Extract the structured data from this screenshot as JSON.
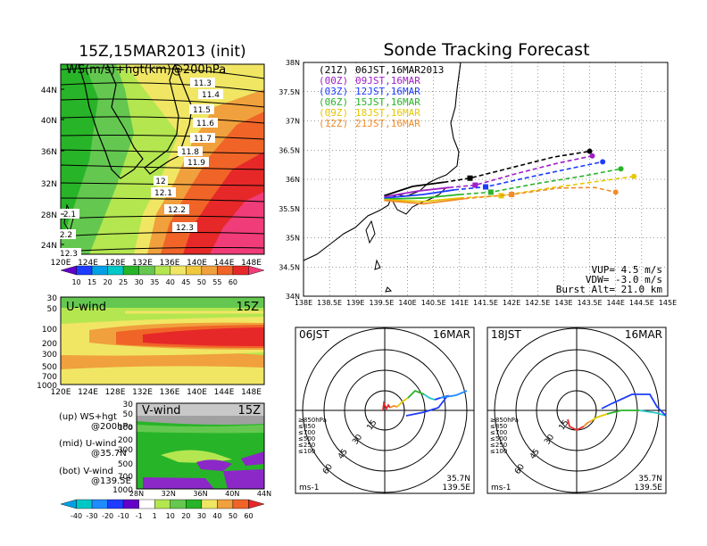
{
  "left_panel": {
    "title": "15Z,15MAR2013 (init)",
    "map_label": "WS(m/s)+hgt(km)@200hPa",
    "lat_ticks": [
      "44N",
      "40N",
      "36N",
      "32N",
      "28N",
      "24N"
    ],
    "lon_ticks": [
      "120E",
      "124E",
      "128E",
      "132E",
      "136E",
      "140E",
      "144E",
      "148E"
    ],
    "contour_labels": [
      "11.3",
      "11.4",
      "11.5",
      "11.6",
      "11.7",
      "11.8",
      "11.9",
      "12",
      "12.1",
      "12.2",
      "12.3",
      "12.3",
      "2.1",
      "2.2"
    ],
    "ws_colorbar": [
      "10",
      "15",
      "20",
      "25",
      "30",
      "35",
      "40",
      "45",
      "50",
      "55",
      "60"
    ],
    "u_panel": {
      "label": "U-wind",
      "time": "15Z",
      "p_ticks": [
        "30",
        "50",
        "100",
        "200",
        "300",
        "500",
        "700",
        "1000"
      ],
      "lon_ticks": [
        "120E",
        "124E",
        "128E",
        "132E",
        "136E",
        "140E",
        "144E",
        "148E"
      ]
    },
    "v_panel": {
      "label": "V-wind",
      "time": "15Z",
      "p_ticks": [
        "30",
        "50",
        "100",
        "200",
        "300",
        "500",
        "700",
        "1000"
      ],
      "lat_ticks": [
        "28N",
        "32N",
        "36N",
        "40N",
        "44N"
      ]
    },
    "legend": {
      "up": "(up) WS+hgt",
      "up2": "@200hPa",
      "mid": "(mid) U-wind",
      "mid2": "@35.7N",
      "bot": "(bot) V-wind",
      "bot2": "@139.5E"
    },
    "v_colorbar": [
      "-40",
      "-30",
      "-20",
      "-10",
      "-1",
      "1",
      "10",
      "20",
      "30",
      "40",
      "50",
      "60"
    ]
  },
  "main": {
    "title": "Sonde Tracking Forecast",
    "lat_ticks": [
      "38N",
      "37.5N",
      "37N",
      "36.5N",
      "36N",
      "35.5N",
      "35N",
      "34.5N",
      "34N"
    ],
    "lon_ticks": [
      "138E",
      "138.5E",
      "139E",
      "139.5E",
      "140E",
      "140.5E",
      "141E",
      "141.5E",
      "142E",
      "142.5E",
      "143E",
      "143.5E",
      "144E",
      "144.5E",
      "145E"
    ],
    "legend": [
      {
        "code": "(21Z)",
        "time": "06JST,16MAR2013",
        "color": "#000000"
      },
      {
        "code": "(00Z)",
        "time": "09JST,16MAR",
        "color": "#a020c8"
      },
      {
        "code": "(03Z)",
        "time": "12JST,16MAR",
        "color": "#1e3cff"
      },
      {
        "code": "(06Z)",
        "time": "15JST,16MAR",
        "color": "#28b428"
      },
      {
        "code": "(09Z)",
        "time": "18JST,16MAR",
        "color": "#e6c800"
      },
      {
        "code": "(12Z)",
        "time": "21JST,16MAR",
        "color": "#f08c28"
      }
    ],
    "params": {
      "vup": "VUP=  4.5  m/s",
      "vdw": "VDW= -3.0  m/s",
      "burst": "Burst Alt= 21.0  km"
    }
  },
  "hodo_left": {
    "time": "06JST",
    "date": "16MAR",
    "rings": [
      "15",
      "30",
      "45",
      "60"
    ],
    "unit": "ms-1",
    "loc1": "35.7N",
    "loc2": "139.5E",
    "levels": [
      {
        "t": "≥850hPa",
        "c": "#e62828"
      },
      {
        "t": "≤850",
        "c": "#f08c28"
      },
      {
        "t": "≤700",
        "c": "#e6c800"
      },
      {
        "t": "≤500",
        "c": "#28b428"
      },
      {
        "t": "≤250",
        "c": "#28c8c8"
      },
      {
        "t": "≤100",
        "c": "#1e3cff"
      }
    ]
  },
  "hodo_right": {
    "time": "18JST",
    "date": "16MAR",
    "rings": [
      "15",
      "30",
      "45",
      "60"
    ],
    "unit": "ms-1",
    "loc1": "35.7N",
    "loc2": "139.5E",
    "levels": [
      {
        "t": "≥850hPa",
        "c": "#e62828"
      },
      {
        "t": "≤850",
        "c": "#f08c28"
      },
      {
        "t": "≤700",
        "c": "#e6c800"
      },
      {
        "t": "≤500",
        "c": "#28b428"
      },
      {
        "t": "≤250",
        "c": "#28c8c8"
      },
      {
        "t": "≤100",
        "c": "#1e3cff"
      }
    ]
  },
  "chart_data": {
    "type": "line",
    "title": "Sonde Tracking Forecast",
    "xlabel": "",
    "ylabel": "",
    "xlim": [
      138,
      145
    ],
    "ylim": [
      34,
      38
    ],
    "series": [
      {
        "name": "(21Z) 06JST,16MAR2013",
        "color": "#000000",
        "x": [
          139.55,
          140.1,
          140.7,
          141.2,
          142.0,
          142.8,
          143.5
        ],
        "y": [
          35.72,
          35.88,
          35.95,
          36.02,
          36.2,
          36.38,
          36.48
        ]
      },
      {
        "name": "(00Z) 09JST,16MAR",
        "color": "#a020c8",
        "x": [
          139.55,
          140.2,
          140.8,
          141.3,
          142.1,
          142.9,
          143.55
        ],
        "y": [
          35.7,
          35.8,
          35.86,
          35.9,
          36.1,
          36.28,
          36.4
        ]
      },
      {
        "name": "(03Z) 12JST,16MAR",
        "color": "#1e3cff",
        "x": [
          139.55,
          140.3,
          140.9,
          141.5,
          142.3,
          143.1,
          143.75
        ],
        "y": [
          35.68,
          35.74,
          35.82,
          35.87,
          36.03,
          36.18,
          36.3
        ]
      },
      {
        "name": "(06Z) 15JST,16MAR",
        "color": "#28b428",
        "x": [
          139.55,
          140.3,
          141.0,
          141.6,
          142.5,
          143.4,
          144.1
        ],
        "y": [
          35.66,
          35.68,
          35.74,
          35.78,
          35.93,
          36.06,
          36.18
        ]
      },
      {
        "name": "(09Z) 18JST,16MAR",
        "color": "#e6c800",
        "x": [
          139.55,
          140.3,
          141.0,
          141.8,
          142.8,
          143.7,
          144.35
        ],
        "y": [
          35.65,
          35.62,
          35.68,
          35.72,
          35.86,
          35.97,
          36.05
        ]
      },
      {
        "name": "(12Z) 21JST,16MAR",
        "color": "#f08c28",
        "x": [
          139.55,
          140.3,
          141.1,
          142.0,
          142.9,
          143.6,
          144.0
        ],
        "y": [
          35.64,
          35.58,
          35.67,
          35.74,
          35.85,
          35.86,
          35.78
        ]
      }
    ]
  }
}
